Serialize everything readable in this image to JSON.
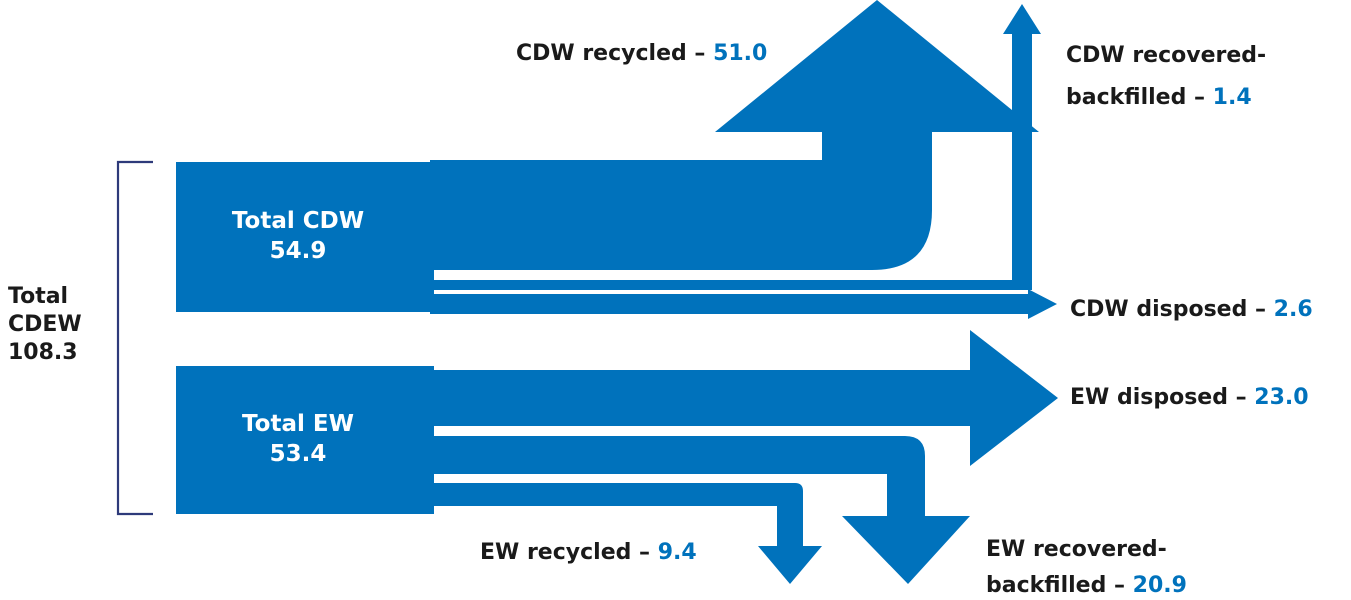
{
  "colors": {
    "flow": "#0072bc",
    "bracket": "#2e3a7a",
    "text": "#1a1a1a",
    "value": "#0072bc",
    "box_text": "#ffffff"
  },
  "total": {
    "line1": "Total",
    "line2": "CDEW",
    "value": "108.3"
  },
  "cdw_box": {
    "label": "Total CDW",
    "value": "54.9"
  },
  "ew_box": {
    "label": "Total EW",
    "value": "53.4"
  },
  "outputs": {
    "cdw_recycled": {
      "label": "CDW recycled – ",
      "value": "51.0"
    },
    "cdw_backfilled": {
      "line1": "CDW recovered-",
      "line2": "backfilled – ",
      "value": "1.4"
    },
    "cdw_disposed": {
      "label": "CDW disposed – ",
      "value": "2.6"
    },
    "ew_disposed": {
      "label": "EW disposed – ",
      "value": "23.0"
    },
    "ew_recycled": {
      "label": "EW recycled – ",
      "value": "9.4"
    },
    "ew_backfilled": {
      "line1": "EW recovered-",
      "line2": "backfilled – ",
      "value": "20.9"
    }
  }
}
